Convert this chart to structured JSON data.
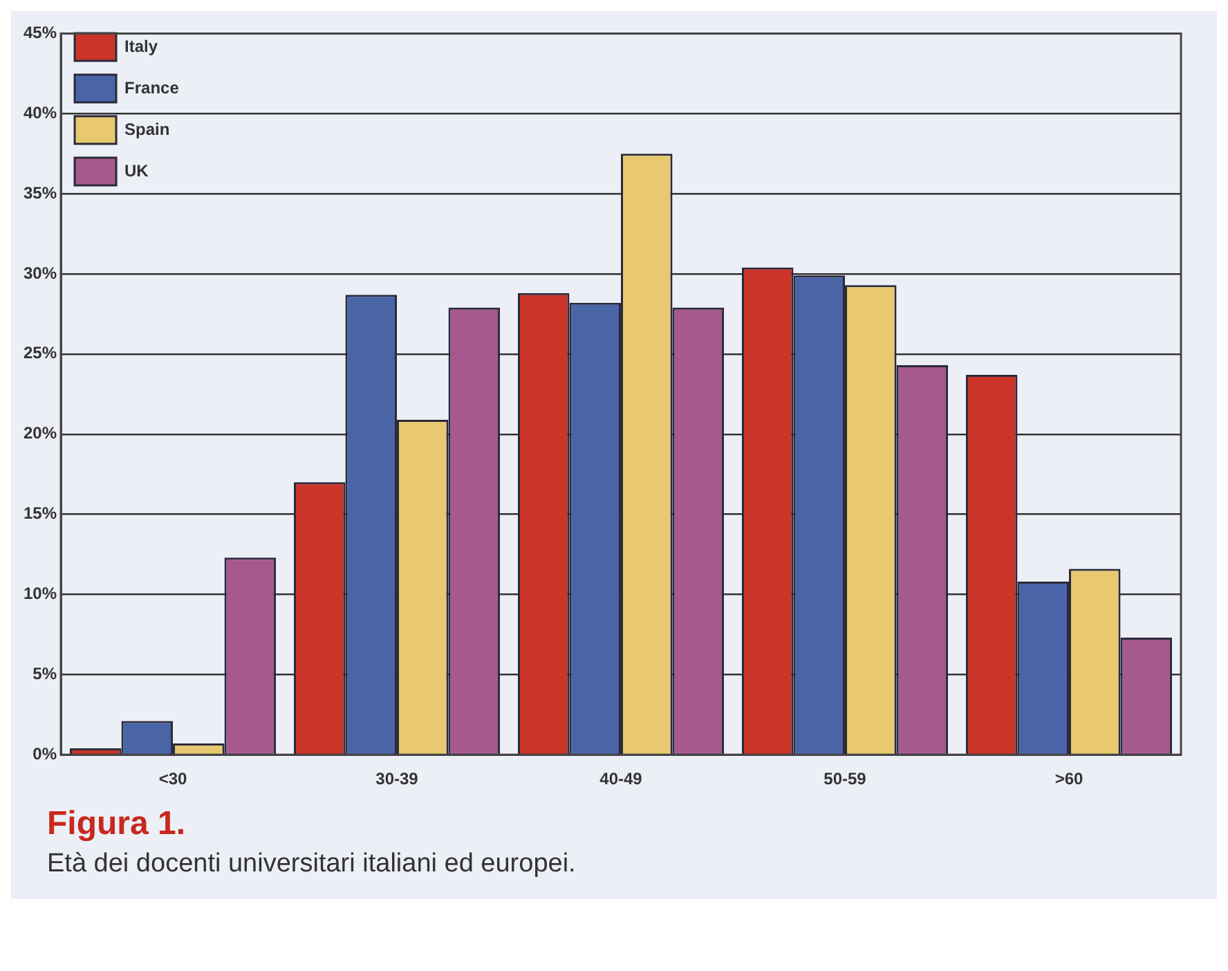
{
  "chart_data": {
    "type": "bar",
    "title": "Figura 1.",
    "subtitle": "Età dei docenti universitari italiani ed europei.",
    "categories": [
      "<30",
      "30-39",
      "40-49",
      "50-59",
      ">60"
    ],
    "series": [
      {
        "name": "Italy",
        "color": "#cc3329",
        "values": [
          0.4,
          17.0,
          28.8,
          30.4,
          23.7
        ]
      },
      {
        "name": "France",
        "color": "#4a64a8",
        "values": [
          2.1,
          28.7,
          28.2,
          29.9,
          10.8
        ]
      },
      {
        "name": "Spain",
        "color": "#e8c870",
        "values": [
          0.7,
          20.9,
          37.5,
          29.3,
          11.6
        ]
      },
      {
        "name": "UK",
        "color": "#a45a8c",
        "values": [
          12.3,
          27.9,
          27.9,
          24.3,
          7.3
        ]
      }
    ],
    "ylim": [
      0,
      45
    ],
    "yticks": [
      {
        "value": 0,
        "label": "0%"
      },
      {
        "value": 5,
        "label": "5%"
      },
      {
        "value": 10,
        "label": "10%"
      },
      {
        "value": 15,
        "label": "15%"
      },
      {
        "value": 20,
        "label": "20%"
      },
      {
        "value": 25,
        "label": "25%"
      },
      {
        "value": 30,
        "label": "30%"
      },
      {
        "value": 35,
        "label": "35%"
      },
      {
        "value": 40,
        "label": "40%"
      },
      {
        "value": 45,
        "label": "45%"
      }
    ],
    "grid": "y",
    "legend": "top left"
  }
}
